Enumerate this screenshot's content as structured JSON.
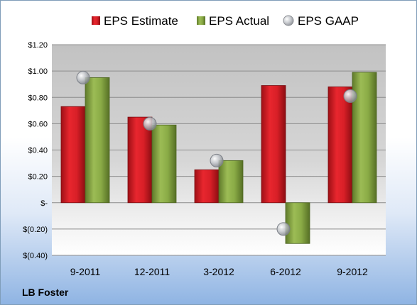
{
  "company_label": "LB Foster",
  "colors": {
    "estimate": "#d61f26",
    "actual": "#8fb04a",
    "gaap": "#b8bcc2"
  },
  "chart_data": {
    "type": "bar",
    "categories": [
      "9-2011",
      "12-2011",
      "3-2012",
      "6-2012",
      "9-2012"
    ],
    "series": [
      {
        "name": "EPS Estimate",
        "kind": "bar",
        "values": [
          0.73,
          0.65,
          0.25,
          0.89,
          0.88
        ]
      },
      {
        "name": "EPS Actual",
        "kind": "bar",
        "values": [
          0.95,
          0.59,
          0.32,
          -0.31,
          0.99
        ]
      },
      {
        "name": "EPS GAAP",
        "kind": "scatter",
        "values": [
          0.95,
          0.6,
          0.32,
          -0.2,
          0.81
        ]
      }
    ],
    "y_ticks": [
      "$1.20",
      "$1.00",
      "$0.80",
      "$0.60",
      "$0.40",
      "$0.20",
      "$-",
      "$(0.20)",
      "$(0.40)"
    ],
    "ylim": [
      -0.4,
      1.2
    ],
    "grid": true,
    "legend_position": "top"
  }
}
